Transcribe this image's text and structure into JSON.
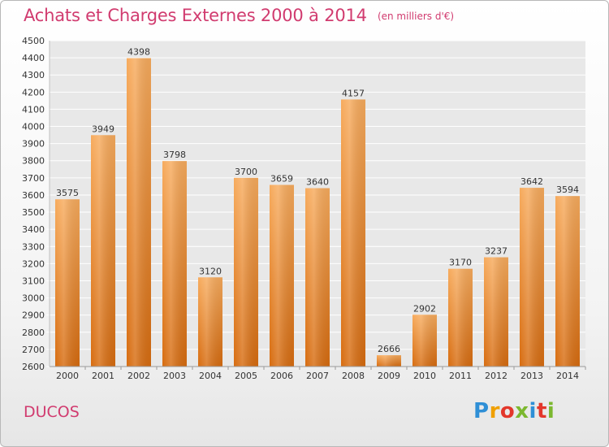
{
  "header": {
    "title": "Achats et Charges Externes 2000 à 2014",
    "unit": "(en milliers d'€)"
  },
  "footer": {
    "commune": "DUCOS",
    "brand_letters": [
      "P",
      "r",
      "o",
      "x",
      "i",
      "t",
      "i"
    ]
  },
  "colors": {
    "title": "#d13b6f",
    "bar_light": "#f6a85a",
    "bar_dark": "#d96f12",
    "grid": "#ffffff",
    "plot_bg": "#e9e9e9"
  },
  "chart_data": {
    "type": "bar",
    "title": "Achats et Charges Externes 2000 à 2014",
    "subtitle": "(en milliers d'€)",
    "xlabel": "",
    "ylabel": "",
    "categories": [
      "2000",
      "2001",
      "2002",
      "2003",
      "2004",
      "2005",
      "2006",
      "2007",
      "2008",
      "2009",
      "2010",
      "2011",
      "2012",
      "2013",
      "2014"
    ],
    "values": [
      3575,
      3949,
      4398,
      3798,
      3120,
      3700,
      3659,
      3640,
      4157,
      2666,
      2902,
      3170,
      3237,
      3642,
      3594
    ],
    "ylim": [
      2600,
      4500
    ],
    "ytick_step": 100,
    "grid": true,
    "data_labels": true
  }
}
